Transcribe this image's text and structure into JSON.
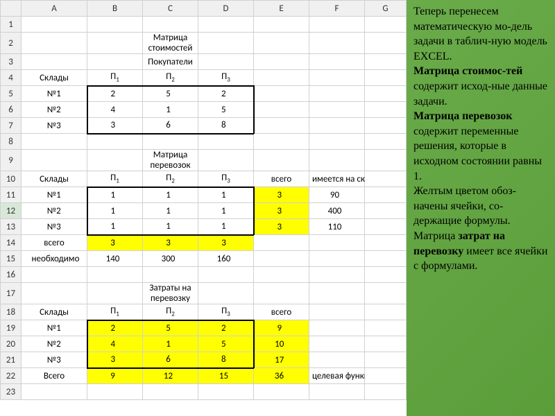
{
  "columns": [
    "A",
    "B",
    "C",
    "D",
    "E",
    "F",
    "G"
  ],
  "rows": 23,
  "selected_row_header": 12,
  "colors": {
    "yellow": "#ffff00",
    "header_bg": "#f0f0f0",
    "border": "#d0d0d0",
    "thick_border": "#000000",
    "side_bg": "#5a9e3a",
    "side_text": "#000000"
  },
  "cells": {
    "C2": {
      "v": "Матрица стоимостей"
    },
    "C3": {
      "v": "Покупатели"
    },
    "A4": {
      "v": "Склады"
    },
    "B4": {
      "v": "П",
      "sub": "1"
    },
    "C4": {
      "v": "П",
      "sub": "2"
    },
    "D4": {
      "v": "П",
      "sub": "3"
    },
    "A5": {
      "v": "№1"
    },
    "A6": {
      "v": "№2"
    },
    "A7": {
      "v": "№3"
    },
    "B5": {
      "v": "2",
      "align": "right",
      "b": "tl"
    },
    "C5": {
      "v": "5",
      "align": "right",
      "b": "t"
    },
    "D5": {
      "v": "2",
      "align": "right",
      "b": "tr"
    },
    "B6": {
      "v": "4",
      "align": "right",
      "b": "l"
    },
    "C6": {
      "v": "1",
      "align": "right"
    },
    "D6": {
      "v": "5",
      "align": "right",
      "b": "r"
    },
    "B7": {
      "v": "3",
      "align": "right",
      "b": "bl"
    },
    "C7": {
      "v": "6",
      "align": "right",
      "b": "b"
    },
    "D7": {
      "v": "8",
      "align": "right",
      "b": "br"
    },
    "C9": {
      "v": "Матрица перевозок"
    },
    "A10": {
      "v": "Склады"
    },
    "B10": {
      "v": "П",
      "sub": "1"
    },
    "C10": {
      "v": "П",
      "sub": "2"
    },
    "D10": {
      "v": "П",
      "sub": "3"
    },
    "E10": {
      "v": "всего"
    },
    "F10": {
      "v": "имеется на складе"
    },
    "A11": {
      "v": "№1"
    },
    "A12": {
      "v": "№2"
    },
    "A13": {
      "v": "№3"
    },
    "B11": {
      "v": "1",
      "align": "right",
      "b": "tl"
    },
    "C11": {
      "v": "1",
      "align": "right",
      "b": "t"
    },
    "D11": {
      "v": "1",
      "align": "right",
      "b": "tr"
    },
    "B12": {
      "v": "1",
      "align": "right",
      "b": "l"
    },
    "C12": {
      "v": "1",
      "align": "right"
    },
    "D12": {
      "v": "1",
      "align": "right",
      "b": "r"
    },
    "B13": {
      "v": "1",
      "align": "right",
      "b": "bl"
    },
    "C13": {
      "v": "1",
      "align": "right",
      "b": "b"
    },
    "D13": {
      "v": "1",
      "align": "right",
      "b": "br"
    },
    "E11": {
      "v": "3",
      "yellow": true,
      "align": "right"
    },
    "E12": {
      "v": "3",
      "yellow": true,
      "align": "right"
    },
    "E13": {
      "v": "3",
      "yellow": true,
      "align": "right"
    },
    "F11": {
      "v": "90",
      "align": "right"
    },
    "F12": {
      "v": "400",
      "align": "right"
    },
    "F13": {
      "v": "110",
      "align": "right"
    },
    "A14": {
      "v": "всего"
    },
    "B14": {
      "v": "3",
      "yellow": true,
      "align": "right"
    },
    "C14": {
      "v": "3",
      "yellow": true,
      "align": "right"
    },
    "D14": {
      "v": "3",
      "yellow": true,
      "align": "right"
    },
    "A15": {
      "v": "необходимо",
      "align": "left"
    },
    "B15": {
      "v": "140",
      "align": "right"
    },
    "C15": {
      "v": "300",
      "align": "right"
    },
    "D15": {
      "v": "160",
      "align": "right"
    },
    "C17": {
      "v": "Затраты на перевозку"
    },
    "A18": {
      "v": "Склады"
    },
    "B18": {
      "v": "П",
      "sub": "1"
    },
    "C18": {
      "v": "П",
      "sub": "2"
    },
    "D18": {
      "v": "П",
      "sub": "3"
    },
    "E18": {
      "v": "всего"
    },
    "A19": {
      "v": "№1"
    },
    "A20": {
      "v": "№2"
    },
    "A21": {
      "v": "№3"
    },
    "B19": {
      "v": "2",
      "yellow": true,
      "align": "right",
      "b": "tl"
    },
    "C19": {
      "v": "5",
      "yellow": true,
      "align": "right",
      "b": "t"
    },
    "D19": {
      "v": "2",
      "yellow": true,
      "align": "right",
      "b": "tr"
    },
    "B20": {
      "v": "4",
      "yellow": true,
      "align": "right",
      "b": "l"
    },
    "C20": {
      "v": "1",
      "yellow": true,
      "align": "right"
    },
    "D20": {
      "v": "5",
      "yellow": true,
      "align": "right",
      "b": "r"
    },
    "B21": {
      "v": "3",
      "yellow": true,
      "align": "right",
      "b": "bl"
    },
    "C21": {
      "v": "6",
      "yellow": true,
      "align": "right",
      "b": "b"
    },
    "D21": {
      "v": "8",
      "yellow": true,
      "align": "right",
      "b": "br"
    },
    "E19": {
      "v": "9",
      "yellow": true,
      "align": "right"
    },
    "E20": {
      "v": "10",
      "yellow": true,
      "align": "right"
    },
    "E21": {
      "v": "17",
      "yellow": true,
      "align": "right"
    },
    "A22": {
      "v": "Всего"
    },
    "B22": {
      "v": "9",
      "yellow": true,
      "align": "right"
    },
    "C22": {
      "v": "12",
      "yellow": true,
      "align": "right"
    },
    "D22": {
      "v": "15",
      "yellow": true,
      "align": "right"
    },
    "E22": {
      "v": "36",
      "yellow": true,
      "align": "right"
    },
    "F22": {
      "v": "целевая функция",
      "align": "left"
    }
  },
  "side_paragraphs": [
    {
      "text": "Теперь перенесем математическую мо-дель задачи в таблич-ную модель EXCEL."
    },
    {
      "text": "<b>Матрица стоимос-тей</b> содержит исход-ные данные задачи."
    },
    {
      "text": "<b>Матрица перевозок</b> содержит переменные решения, которые в исходном состоянии равны 1."
    },
    {
      "text": "Желтым цветом обоз-начены ячейки, со-держащие формулы."
    },
    {
      "text": "Матрица <b>затрат на перевозку</b> имеет все ячейки с формулами."
    }
  ]
}
